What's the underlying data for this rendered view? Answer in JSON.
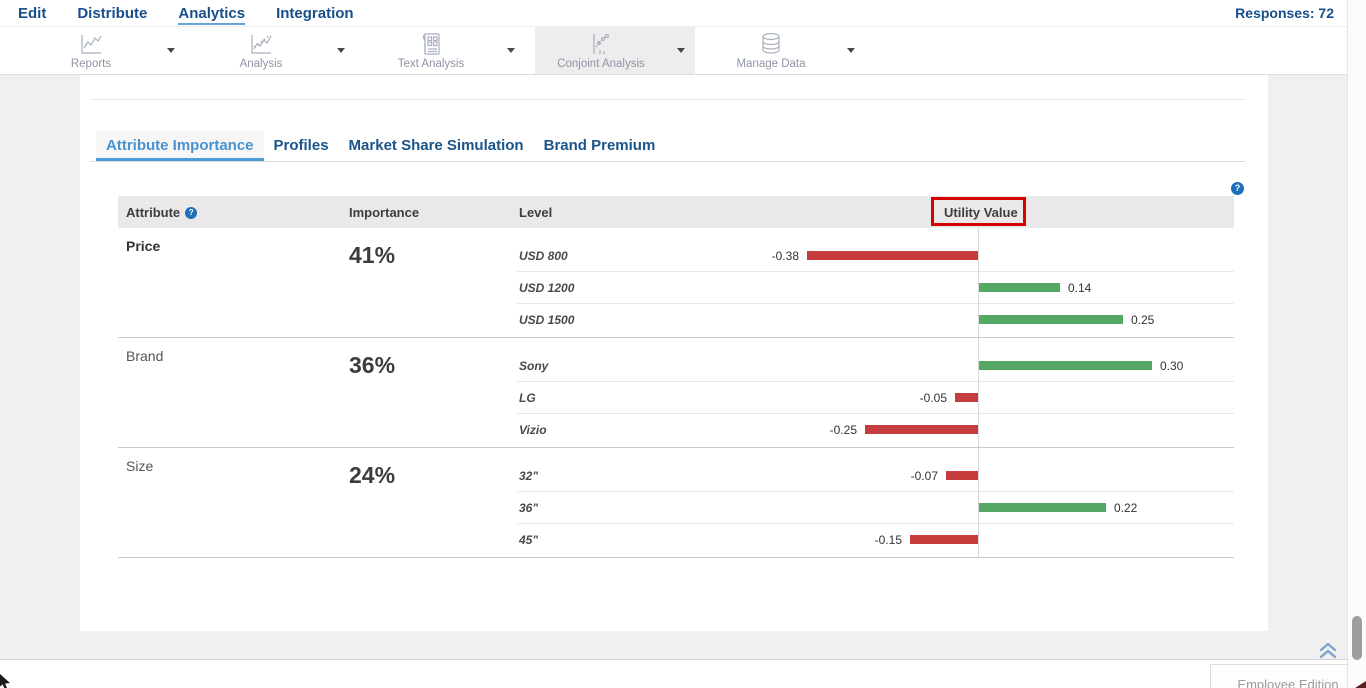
{
  "nav": {
    "items": [
      {
        "label": "Edit",
        "active": false
      },
      {
        "label": "Distribute",
        "active": false
      },
      {
        "label": "Analytics",
        "active": true
      },
      {
        "label": "Integration",
        "active": false
      }
    ],
    "responses_label": "Responses: 72"
  },
  "toolbar": {
    "items": [
      {
        "label": "Reports",
        "icon": "line-chart-icon",
        "active": false
      },
      {
        "label": "Analysis",
        "icon": "trend-chart-icon",
        "active": false
      },
      {
        "label": "Text Analysis",
        "icon": "document-grid-icon",
        "active": false
      },
      {
        "label": "Conjoint Analysis",
        "icon": "scatter-chart-icon",
        "active": true
      },
      {
        "label": "Manage Data",
        "icon": "database-icon",
        "active": false
      }
    ]
  },
  "tabs": [
    {
      "label": "Attribute Importance",
      "active": true
    },
    {
      "label": "Profiles",
      "active": false
    },
    {
      "label": "Market Share Simulation",
      "active": false
    },
    {
      "label": "Brand Premium",
      "active": false
    }
  ],
  "table": {
    "headers": {
      "attribute": "Attribute",
      "importance": "Importance",
      "level": "Level",
      "utility": "Utility Value"
    },
    "groups": [
      {
        "attribute": "Price",
        "importance": "41%",
        "levels": [
          {
            "name": "USD 800",
            "value": -0.38
          },
          {
            "name": "USD 1200",
            "value": 0.14
          },
          {
            "name": "USD 1500",
            "value": 0.25
          }
        ]
      },
      {
        "attribute": "Brand",
        "importance": "36%",
        "levels": [
          {
            "name": "Sony",
            "value": 0.3
          },
          {
            "name": "LG",
            "value": -0.05
          },
          {
            "name": "Vizio",
            "value": -0.25
          }
        ]
      },
      {
        "attribute": "Size",
        "importance": "24%",
        "levels": [
          {
            "name": "32\"",
            "value": -0.07
          },
          {
            "name": "36\"",
            "value": 0.22
          },
          {
            "name": "45\"",
            "value": -0.15
          }
        ]
      }
    ]
  },
  "footer": {
    "edition_label": "Employee Edition"
  },
  "icons": {
    "help": "question-circle-icon",
    "back_to_top": "double-chevron-up-icon",
    "dropdown": "caret-down-icon"
  },
  "colors": {
    "positive_bar": "#55a864",
    "negative_bar": "#c73c3c",
    "accent_blue": "#174f8c",
    "active_tab_blue": "#4793d2",
    "annotation_red": "#d60000"
  }
}
